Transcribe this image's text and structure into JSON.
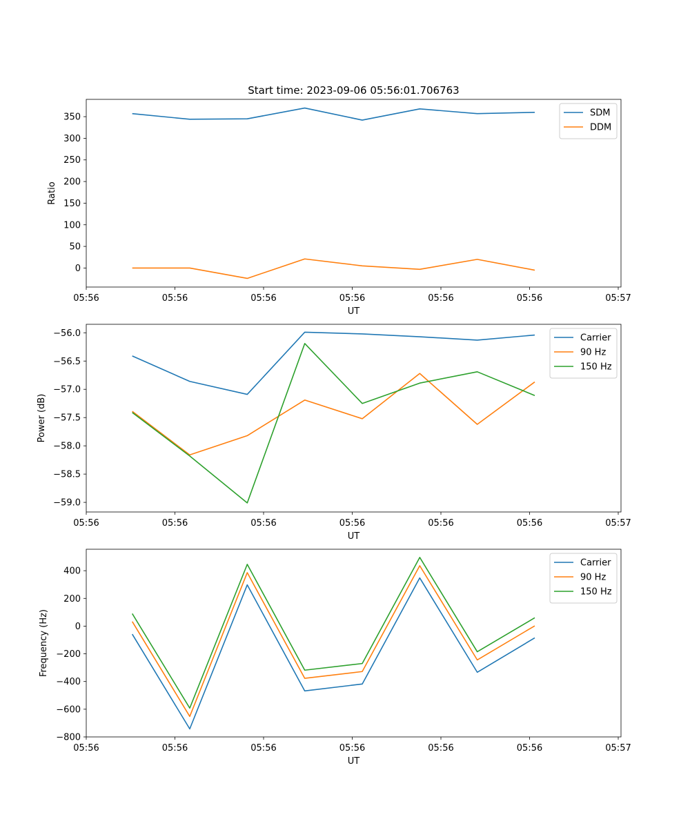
{
  "title": "Start time: 2023-09-06 05:56:01.706763",
  "chart_data": [
    {
      "type": "line",
      "title": "Start time: 2023-09-06 05:56:01.706763",
      "xlabel": "UT",
      "ylabel": "Ratio",
      "x": [
        1,
        2,
        3,
        4,
        5,
        6,
        7,
        8
      ],
      "xlim": [
        0.2,
        9.5
      ],
      "x_ticks": [
        0.2,
        1.742,
        3.284,
        4.826,
        6.368,
        7.91,
        9.452
      ],
      "x_tick_labels": [
        "05:56",
        "05:56",
        "05:56",
        "05:56",
        "05:56",
        "05:56",
        "05:57"
      ],
      "ylim": [
        -44,
        390
      ],
      "y_ticks": [
        0,
        50,
        100,
        150,
        200,
        250,
        300,
        350
      ],
      "y_tick_labels": [
        "0",
        "50",
        "100",
        "150",
        "200",
        "250",
        "300",
        "350"
      ],
      "legend": "top-right",
      "series": [
        {
          "name": "SDM",
          "color": "#1f77b4",
          "values": [
            357,
            344,
            345,
            370,
            342,
            368,
            357,
            360
          ]
        },
        {
          "name": "DDM",
          "color": "#ff7f0e",
          "values": [
            0,
            0,
            -24,
            21,
            5,
            -3,
            20,
            -5
          ]
        }
      ]
    },
    {
      "type": "line",
      "title": "",
      "xlabel": "UT",
      "ylabel": "Power (dB)",
      "x": [
        1,
        2,
        3,
        4,
        5,
        6,
        7,
        8
      ],
      "xlim": [
        0.2,
        9.5
      ],
      "x_ticks": [
        0.2,
        1.742,
        3.284,
        4.826,
        6.368,
        7.91,
        9.452
      ],
      "x_tick_labels": [
        "05:56",
        "05:56",
        "05:56",
        "05:56",
        "05:56",
        "05:56",
        "05:57"
      ],
      "ylim": [
        -59.17,
        -55.85
      ],
      "y_ticks": [
        -59.0,
        -58.5,
        -58.0,
        -57.5,
        -57.0,
        -56.5,
        -56.0
      ],
      "y_tick_labels": [
        "−59.0",
        "−58.5",
        "−58.0",
        "−57.5",
        "−57.0",
        "−56.5",
        "−56.0"
      ],
      "legend": "top-right",
      "series": [
        {
          "name": "Carrier",
          "color": "#1f77b4",
          "values": [
            -56.41,
            -56.86,
            -57.09,
            -55.99,
            -56.02,
            -56.07,
            -56.13,
            -56.04
          ]
        },
        {
          "name": "90 Hz",
          "color": "#ff7f0e",
          "values": [
            -57.39,
            -58.16,
            -57.82,
            -57.19,
            -57.52,
            -56.72,
            -57.62,
            -56.87
          ]
        },
        {
          "name": "150 Hz",
          "color": "#2ca02c",
          "values": [
            -57.41,
            -58.18,
            -59.01,
            -56.19,
            -57.25,
            -56.89,
            -56.69,
            -57.11
          ]
        }
      ]
    },
    {
      "type": "line",
      "title": "",
      "xlabel": "UT",
      "ylabel": "Frequency (Hz)",
      "x": [
        1,
        2,
        3,
        4,
        5,
        6,
        7,
        8
      ],
      "xlim": [
        0.2,
        9.5
      ],
      "x_ticks": [
        0.2,
        1.742,
        3.284,
        4.826,
        6.368,
        7.91,
        9.452
      ],
      "x_tick_labels": [
        "05:56",
        "05:56",
        "05:56",
        "05:56",
        "05:56",
        "05:56",
        "05:57"
      ],
      "ylim": [
        -800,
        555
      ],
      "y_ticks": [
        -800,
        -600,
        -400,
        -200,
        0,
        200,
        400
      ],
      "y_tick_labels": [
        "−800",
        "−600",
        "−400",
        "−200",
        "0",
        "200",
        "400"
      ],
      "legend": "top-right",
      "series": [
        {
          "name": "Carrier",
          "color": "#1f77b4",
          "values": [
            -58,
            -742,
            298,
            -468,
            -418,
            348,
            -333,
            -85
          ]
        },
        {
          "name": "90 Hz",
          "color": "#ff7f0e",
          "values": [
            33,
            -652,
            386,
            -377,
            -328,
            436,
            -244,
            2
          ]
        },
        {
          "name": "150 Hz",
          "color": "#2ca02c",
          "values": [
            90,
            -592,
            446,
            -318,
            -270,
            496,
            -185,
            60
          ]
        }
      ]
    }
  ]
}
